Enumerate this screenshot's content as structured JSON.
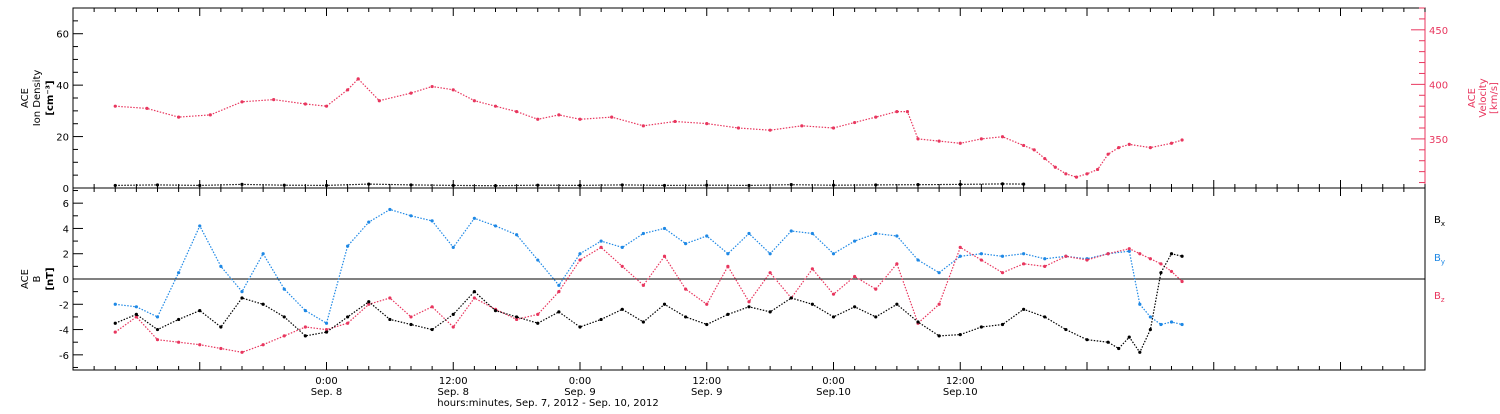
{
  "colors": {
    "density": "#000000",
    "velocity": "#e8365e",
    "bx": "#000000",
    "by": "#1e88e5",
    "bz": "#e8365e"
  },
  "chart_data": [
    {
      "type": "scatter",
      "panel": "top",
      "ylabel": "ACE Ion Density [cm⁻³]",
      "ylabel_lines": [
        "ACE",
        "Ion Density",
        "[cm⁻³]"
      ],
      "ylim": [
        0,
        70
      ],
      "yticks": [
        0,
        20,
        40,
        60
      ],
      "y2label_lines": [
        "ACE",
        "Velocity",
        "[km/s]"
      ],
      "y2lim": [
        305,
        470
      ],
      "y2ticks": [
        350,
        400,
        450
      ],
      "series": [
        {
          "key": "density",
          "color": "#000000",
          "values": [
            [
              -20,
              1.0
            ],
            [
              -16,
              1.2
            ],
            [
              -12,
              1.0
            ],
            [
              -8,
              1.4
            ],
            [
              -4,
              1.1
            ],
            [
              0,
              1.0
            ],
            [
              4,
              1.5
            ],
            [
              8,
              1.2
            ],
            [
              12,
              1.0
            ],
            [
              16,
              0.9
            ],
            [
              20,
              1.1
            ],
            [
              24,
              1.0
            ],
            [
              28,
              1.2
            ],
            [
              32,
              1.0
            ],
            [
              36,
              1.1
            ],
            [
              40,
              1.0
            ],
            [
              44,
              1.3
            ],
            [
              48,
              1.1
            ],
            [
              52,
              1.2
            ],
            [
              56,
              1.3
            ],
            [
              60,
              1.4
            ],
            [
              64,
              1.6
            ],
            [
              66,
              1.5
            ]
          ]
        },
        {
          "key": "velocity",
          "color": "#e8365e",
          "values": [
            [
              -20,
              380
            ],
            [
              -17,
              378
            ],
            [
              -14,
              370
            ],
            [
              -11,
              372
            ],
            [
              -8,
              384
            ],
            [
              -5,
              386
            ],
            [
              -2,
              382
            ],
            [
              0,
              380
            ],
            [
              2,
              395
            ],
            [
              3,
              405
            ],
            [
              5,
              385
            ],
            [
              8,
              392
            ],
            [
              10,
              398
            ],
            [
              12,
              395
            ],
            [
              14,
              385
            ],
            [
              16,
              380
            ],
            [
              18,
              375
            ],
            [
              20,
              368
            ],
            [
              22,
              372
            ],
            [
              24,
              368
            ],
            [
              27,
              370
            ],
            [
              30,
              362
            ],
            [
              33,
              366
            ],
            [
              36,
              364
            ],
            [
              39,
              360
            ],
            [
              42,
              358
            ],
            [
              45,
              362
            ],
            [
              48,
              360
            ],
            [
              50,
              365
            ],
            [
              52,
              370
            ],
            [
              54,
              375
            ],
            [
              55,
              375
            ],
            [
              56,
              350
            ],
            [
              58,
              348
            ],
            [
              60,
              346
            ],
            [
              62,
              350
            ],
            [
              64,
              352
            ],
            [
              66,
              344
            ],
            [
              67,
              340
            ],
            [
              68,
              332
            ],
            [
              69,
              324
            ],
            [
              70,
              318
            ],
            [
              71,
              315
            ],
            [
              72,
              318
            ],
            [
              73,
              322
            ],
            [
              74,
              336
            ],
            [
              75,
              342
            ],
            [
              76,
              345
            ],
            [
              78,
              342
            ],
            [
              80,
              346
            ],
            [
              81,
              349
            ]
          ]
        }
      ]
    },
    {
      "type": "scatter",
      "panel": "bottom",
      "ylabel": "ACE B [nT]",
      "ylabel_lines": [
        "ACE",
        "B",
        "[nT]"
      ],
      "ylim": [
        -7.2,
        7.2
      ],
      "yticks": [
        -6,
        -4,
        -2,
        0,
        2,
        4,
        6
      ],
      "legend": [
        "Bₓ",
        "Bᵧ",
        "B_z"
      ],
      "legend_parts": [
        [
          "B",
          "x"
        ],
        [
          "B",
          "y"
        ],
        [
          "B",
          "z"
        ]
      ],
      "series": [
        {
          "key": "bx",
          "color": "#000000",
          "values": [
            [
              -20,
              -3.5
            ],
            [
              -18,
              -2.8
            ],
            [
              -16,
              -4.0
            ],
            [
              -14,
              -3.2
            ],
            [
              -12,
              -2.5
            ],
            [
              -10,
              -3.8
            ],
            [
              -8,
              -1.5
            ],
            [
              -6,
              -2.0
            ],
            [
              -4,
              -3.0
            ],
            [
              -2,
              -4.5
            ],
            [
              0,
              -4.2
            ],
            [
              2,
              -3.0
            ],
            [
              4,
              -1.8
            ],
            [
              6,
              -3.2
            ],
            [
              8,
              -3.6
            ],
            [
              10,
              -4.0
            ],
            [
              12,
              -2.8
            ],
            [
              14,
              -1.0
            ],
            [
              16,
              -2.5
            ],
            [
              18,
              -3.0
            ],
            [
              20,
              -3.5
            ],
            [
              22,
              -2.6
            ],
            [
              24,
              -3.8
            ],
            [
              26,
              -3.2
            ],
            [
              28,
              -2.4
            ],
            [
              30,
              -3.4
            ],
            [
              32,
              -2.0
            ],
            [
              34,
              -3.0
            ],
            [
              36,
              -3.6
            ],
            [
              38,
              -2.8
            ],
            [
              40,
              -2.2
            ],
            [
              42,
              -2.6
            ],
            [
              44,
              -1.5
            ],
            [
              46,
              -2.0
            ],
            [
              48,
              -3.0
            ],
            [
              50,
              -2.2
            ],
            [
              52,
              -3.0
            ],
            [
              54,
              -2.0
            ],
            [
              56,
              -3.4
            ],
            [
              58,
              -4.5
            ],
            [
              60,
              -4.4
            ],
            [
              62,
              -3.8
            ],
            [
              64,
              -3.6
            ],
            [
              66,
              -2.4
            ],
            [
              68,
              -3.0
            ],
            [
              70,
              -4.0
            ],
            [
              72,
              -4.8
            ],
            [
              74,
              -5.0
            ],
            [
              75,
              -5.5
            ],
            [
              76,
              -4.6
            ],
            [
              77,
              -5.8
            ],
            [
              78,
              -4.0
            ],
            [
              79,
              0.5
            ],
            [
              80,
              2.0
            ],
            [
              81,
              1.8
            ]
          ]
        },
        {
          "key": "by",
          "color": "#1e88e5",
          "values": [
            [
              -20,
              -2.0
            ],
            [
              -18,
              -2.2
            ],
            [
              -16,
              -3.0
            ],
            [
              -14,
              0.5
            ],
            [
              -12,
              4.2
            ],
            [
              -10,
              1.0
            ],
            [
              -8,
              -1.0
            ],
            [
              -6,
              2.0
            ],
            [
              -4,
              -0.8
            ],
            [
              -2,
              -2.5
            ],
            [
              0,
              -3.5
            ],
            [
              2,
              2.6
            ],
            [
              4,
              4.5
            ],
            [
              6,
              5.5
            ],
            [
              8,
              5.0
            ],
            [
              10,
              4.6
            ],
            [
              12,
              2.5
            ],
            [
              14,
              4.8
            ],
            [
              16,
              4.2
            ],
            [
              18,
              3.5
            ],
            [
              20,
              1.5
            ],
            [
              22,
              -0.5
            ],
            [
              24,
              2.0
            ],
            [
              26,
              3.0
            ],
            [
              28,
              2.5
            ],
            [
              30,
              3.6
            ],
            [
              32,
              4.0
            ],
            [
              34,
              2.8
            ],
            [
              36,
              3.4
            ],
            [
              38,
              2.0
            ],
            [
              40,
              3.6
            ],
            [
              42,
              2.0
            ],
            [
              44,
              3.8
            ],
            [
              46,
              3.6
            ],
            [
              48,
              2.0
            ],
            [
              50,
              3.0
            ],
            [
              52,
              3.6
            ],
            [
              54,
              3.4
            ],
            [
              56,
              1.5
            ],
            [
              58,
              0.5
            ],
            [
              60,
              1.8
            ],
            [
              62,
              2.0
            ],
            [
              64,
              1.8
            ],
            [
              66,
              2.0
            ],
            [
              68,
              1.6
            ],
            [
              70,
              1.8
            ],
            [
              72,
              1.6
            ],
            [
              74,
              2.0
            ],
            [
              76,
              2.2
            ],
            [
              77,
              -2.0
            ],
            [
              78,
              -3.0
            ],
            [
              79,
              -3.6
            ],
            [
              80,
              -3.4
            ],
            [
              81,
              -3.6
            ]
          ]
        },
        {
          "key": "bz",
          "color": "#e8365e",
          "values": [
            [
              -20,
              -4.2
            ],
            [
              -18,
              -3.0
            ],
            [
              -16,
              -4.8
            ],
            [
              -14,
              -5.0
            ],
            [
              -12,
              -5.2
            ],
            [
              -10,
              -5.5
            ],
            [
              -8,
              -5.8
            ],
            [
              -6,
              -5.2
            ],
            [
              -4,
              -4.5
            ],
            [
              -2,
              -3.8
            ],
            [
              0,
              -4.0
            ],
            [
              2,
              -3.5
            ],
            [
              4,
              -2.0
            ],
            [
              6,
              -1.5
            ],
            [
              8,
              -3.0
            ],
            [
              10,
              -2.2
            ],
            [
              12,
              -3.8
            ],
            [
              14,
              -1.5
            ],
            [
              16,
              -2.4
            ],
            [
              18,
              -3.2
            ],
            [
              20,
              -2.8
            ],
            [
              22,
              -1.0
            ],
            [
              24,
              1.5
            ],
            [
              26,
              2.5
            ],
            [
              28,
              1.0
            ],
            [
              30,
              -0.5
            ],
            [
              32,
              1.8
            ],
            [
              34,
              -0.8
            ],
            [
              36,
              -2.0
            ],
            [
              38,
              1.0
            ],
            [
              40,
              -1.8
            ],
            [
              42,
              0.5
            ],
            [
              44,
              -1.5
            ],
            [
              46,
              0.8
            ],
            [
              48,
              -1.2
            ],
            [
              50,
              0.2
            ],
            [
              52,
              -0.8
            ],
            [
              54,
              1.2
            ],
            [
              56,
              -3.5
            ],
            [
              58,
              -2.0
            ],
            [
              60,
              2.5
            ],
            [
              62,
              1.5
            ],
            [
              64,
              0.5
            ],
            [
              66,
              1.2
            ],
            [
              68,
              1.0
            ],
            [
              70,
              1.8
            ],
            [
              72,
              1.5
            ],
            [
              74,
              2.0
            ],
            [
              76,
              2.4
            ],
            [
              77,
              2.0
            ],
            [
              78,
              1.6
            ],
            [
              79,
              1.2
            ],
            [
              80,
              0.6
            ],
            [
              81,
              -0.2
            ]
          ]
        }
      ]
    }
  ],
  "xaxis": {
    "xlim": [
      -24,
      104
    ],
    "minor_step": 2,
    "major_step": 12,
    "ticks": [
      {
        "hours": 0,
        "time": "0:00",
        "date": "Sep. 8"
      },
      {
        "hours": 12,
        "time": "12:00",
        "date": "Sep. 8"
      },
      {
        "hours": 24,
        "time": "0:00",
        "date": "Sep. 9"
      },
      {
        "hours": 36,
        "time": "12:00",
        "date": "Sep. 9"
      },
      {
        "hours": 48,
        "time": "0:00",
        "date": "Sep.10"
      },
      {
        "hours": 60,
        "time": "12:00",
        "date": "Sep.10"
      }
    ],
    "label": "hours:minutes, Sep.  7, 2012 - Sep. 10, 2012"
  }
}
